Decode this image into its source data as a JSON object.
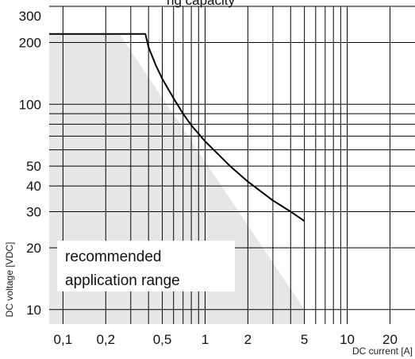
{
  "chart_data": {
    "type": "line",
    "title": "",
    "title_visible_fragment": "ng capacity",
    "xlabel": "DC current [A]",
    "ylabel": "DC voltage [VDC]",
    "x_scale": "log",
    "y_scale": "log",
    "xlim": [
      0.08,
      30
    ],
    "ylim": [
      8.5,
      300
    ],
    "grid": true,
    "x_gridlines": [
      0.1,
      0.2,
      0.3,
      0.4,
      0.5,
      0.6,
      0.7,
      0.8,
      0.9,
      1,
      2,
      3,
      4,
      5,
      6,
      7,
      8,
      9,
      10,
      20
    ],
    "y_gridlines": [
      10,
      20,
      30,
      40,
      50,
      60,
      70,
      80,
      90,
      100,
      200,
      300
    ],
    "x_tick_labels": [
      {
        "value": 0.1,
        "label": "0,1"
      },
      {
        "value": 0.2,
        "label": "0,2"
      },
      {
        "value": 0.5,
        "label": "0,5"
      },
      {
        "value": 1,
        "label": "1"
      },
      {
        "value": 2,
        "label": "2"
      },
      {
        "value": 5,
        "label": "5"
      },
      {
        "value": 10,
        "label": "10"
      },
      {
        "value": 20,
        "label": "20"
      }
    ],
    "y_tick_labels": [
      {
        "value": 10,
        "label": "10"
      },
      {
        "value": 20,
        "label": "20"
      },
      {
        "value": 30,
        "label": "30"
      },
      {
        "value": 40,
        "label": "40"
      },
      {
        "value": 50,
        "label": "50"
      },
      {
        "value": 100,
        "label": "100"
      },
      {
        "value": 200,
        "label": "200"
      },
      {
        "value": 300,
        "label": "300"
      }
    ],
    "series": [
      {
        "x": [
          0.08,
          0.38,
          0.4,
          0.45,
          0.5,
          0.6,
          0.7,
          0.8,
          1,
          1.5,
          2,
          3,
          4,
          5
        ],
        "y": [
          220,
          220,
          190,
          155,
          133,
          107,
          90,
          79,
          66,
          50,
          42,
          34,
          30,
          27
        ],
        "color": "#000000"
      }
    ],
    "shaded_region": {
      "label_lines": [
        "recommended",
        "application range"
      ],
      "color": "#e6e6e6",
      "boundary": [
        {
          "x": 0.08,
          "y": 8.5
        },
        {
          "x": 0.08,
          "y": 220
        },
        {
          "x": 0.25,
          "y": 220
        },
        {
          "x": 5,
          "y": 10
        },
        {
          "x": 5,
          "y": 8.5
        }
      ]
    }
  }
}
